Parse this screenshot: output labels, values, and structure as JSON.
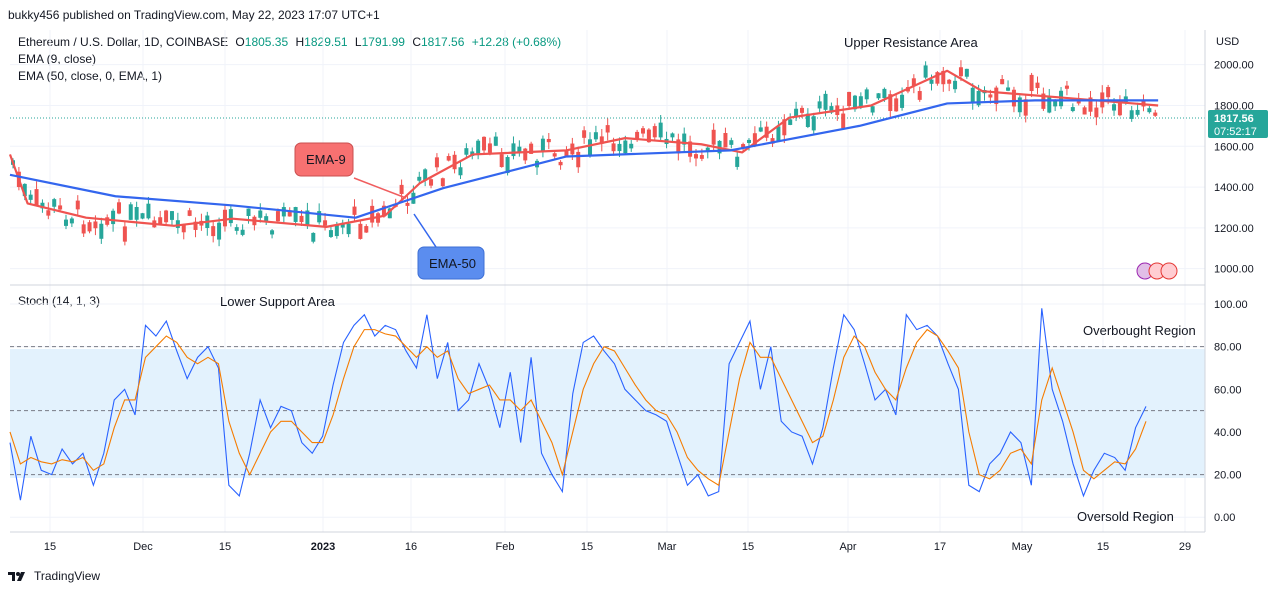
{
  "header": {
    "publisher_line": "bukky456 published on TradingView.com, May 22, 2023 17:07 UTC+1"
  },
  "legend": {
    "symbol": "Ethereum / U.S. Dollar, 1D, COINBASE",
    "open_label": "O",
    "open": "1805.35",
    "high_label": "H",
    "high": "1829.51",
    "low_label": "L",
    "low": "1791.99",
    "close_label": "C",
    "close": "1817.56",
    "change": "+12.28 (+0.68%)",
    "ema9": "EMA (9, close)",
    "ema50": "EMA (50, close, 0, EMA, 1)",
    "stoch": "Stoch (14, 1, 3)"
  },
  "price_axis": {
    "unit": "USD",
    "ticks": [
      "2000.00",
      "1800.00",
      "1600.00",
      "1400.00",
      "1200.00",
      "1000.00"
    ]
  },
  "price_tag": {
    "price": "1817.56",
    "countdown": "07:52:17"
  },
  "stoch_axis": {
    "ticks": [
      "100.00",
      "80.00",
      "60.00",
      "40.00",
      "20.00",
      "0.00"
    ]
  },
  "time_axis": {
    "ticks": [
      "15",
      "Dec",
      "15",
      "2023",
      "16",
      "Feb",
      "15",
      "Mar",
      "15",
      "Apr",
      "17",
      "May",
      "15",
      "29"
    ]
  },
  "annotations": {
    "upper_resistance": "Upper Resistance Area",
    "lower_support": "Lower Support Area",
    "ema9_callout": "EMA-9",
    "ema50_callout": "EMA-50",
    "overbought": "Overbought Region",
    "oversold": "Oversold Region"
  },
  "footer": {
    "brand": "TradingView"
  },
  "colors": {
    "up": "#26a69a",
    "down": "#ef5350",
    "ema9": "#ef5350",
    "ema50": "#3366ee",
    "stoch_k": "#2962ff",
    "stoch_d": "#f57c00",
    "band": "#e3f2fd",
    "grid": "#f0f3fa"
  },
  "chart_data": [
    {
      "type": "candlestick",
      "title": "Ethereum / U.S. Dollar, 1D, COINBASE",
      "ylabel": "USD",
      "ylim": [
        920,
        2170
      ],
      "x_ticks": [
        "15",
        "Dec",
        "15",
        "2023",
        "16",
        "Feb",
        "15",
        "Mar",
        "15",
        "Apr",
        "17",
        "May",
        "15",
        "29"
      ],
      "x_range": [
        "2022-11-07",
        "2023-05-30"
      ],
      "series": [
        {
          "name": "EMA (9, close)",
          "x": [
            "2022-11-07",
            "2022-11-10",
            "2022-11-20",
            "2022-12-05",
            "2022-12-15",
            "2022-12-31",
            "2023-01-10",
            "2023-01-16",
            "2023-01-25",
            "2023-02-10",
            "2023-02-20",
            "2023-03-05",
            "2023-03-12",
            "2023-03-20",
            "2023-04-03",
            "2023-04-16",
            "2023-04-22",
            "2023-05-05",
            "2023-05-22"
          ],
          "values": [
            1560,
            1320,
            1250,
            1210,
            1245,
            1205,
            1260,
            1420,
            1560,
            1580,
            1640,
            1610,
            1570,
            1740,
            1800,
            1970,
            1870,
            1840,
            1800
          ]
        },
        {
          "name": "EMA (50, close, 0, EMA, 1)",
          "x": [
            "2022-11-07",
            "2022-11-25",
            "2022-12-15",
            "2023-01-05",
            "2023-01-20",
            "2023-02-10",
            "2023-03-10",
            "2023-04-01",
            "2023-04-16",
            "2023-05-01",
            "2023-05-22"
          ],
          "values": [
            1460,
            1355,
            1310,
            1250,
            1395,
            1550,
            1580,
            1700,
            1810,
            1825,
            1825
          ]
        }
      ],
      "last": {
        "open": 1805.35,
        "high": 1829.51,
        "low": 1791.99,
        "close": 1817.56,
        "change": 12.28,
        "change_pct": 0.68
      }
    },
    {
      "type": "line",
      "title": "Stoch (14, 1, 3)",
      "ylim": [
        -6,
        108
      ],
      "bands": [
        20,
        50,
        80
      ],
      "series": [
        {
          "name": "%K",
          "values": [
            35,
            8,
            38,
            22,
            20,
            32,
            25,
            30,
            15,
            30,
            55,
            60,
            48,
            90,
            85,
            92,
            78,
            65,
            75,
            80,
            70,
            15,
            10,
            30,
            55,
            42,
            52,
            50,
            35,
            30,
            38,
            62,
            82,
            90,
            95,
            85,
            90,
            88,
            78,
            70,
            95,
            65,
            82,
            50,
            55,
            72,
            60,
            42,
            68,
            35,
            75,
            30,
            20,
            12,
            58,
            82,
            85,
            78,
            72,
            60,
            55,
            50,
            48,
            45,
            30,
            15,
            20,
            10,
            12,
            72,
            82,
            92,
            60,
            80,
            45,
            40,
            38,
            25,
            42,
            70,
            95,
            88,
            72,
            55,
            60,
            48,
            95,
            88,
            90,
            85,
            72,
            60,
            15,
            12,
            25,
            30,
            40,
            35,
            15,
            98,
            60,
            45,
            25,
            10,
            22,
            30,
            28,
            22,
            42,
            52
          ]
        },
        {
          "name": "%D",
          "values": [
            40,
            25,
            28,
            26,
            25,
            27,
            26,
            28,
            22,
            25,
            42,
            55,
            55,
            75,
            80,
            85,
            82,
            75,
            72,
            75,
            72,
            45,
            30,
            20,
            30,
            40,
            45,
            45,
            40,
            35,
            35,
            48,
            65,
            80,
            88,
            88,
            86,
            85,
            80,
            75,
            80,
            75,
            78,
            65,
            58,
            60,
            62,
            55,
            55,
            50,
            55,
            45,
            35,
            20,
            40,
            60,
            72,
            80,
            78,
            70,
            62,
            55,
            50,
            48,
            40,
            28,
            22,
            18,
            15,
            40,
            65,
            82,
            75,
            75,
            65,
            55,
            45,
            35,
            38,
            55,
            75,
            85,
            80,
            68,
            60,
            55,
            70,
            82,
            88,
            85,
            78,
            70,
            40,
            20,
            18,
            22,
            30,
            32,
            25,
            55,
            70,
            55,
            40,
            22,
            18,
            22,
            26,
            25,
            32,
            45
          ]
        }
      ]
    }
  ]
}
